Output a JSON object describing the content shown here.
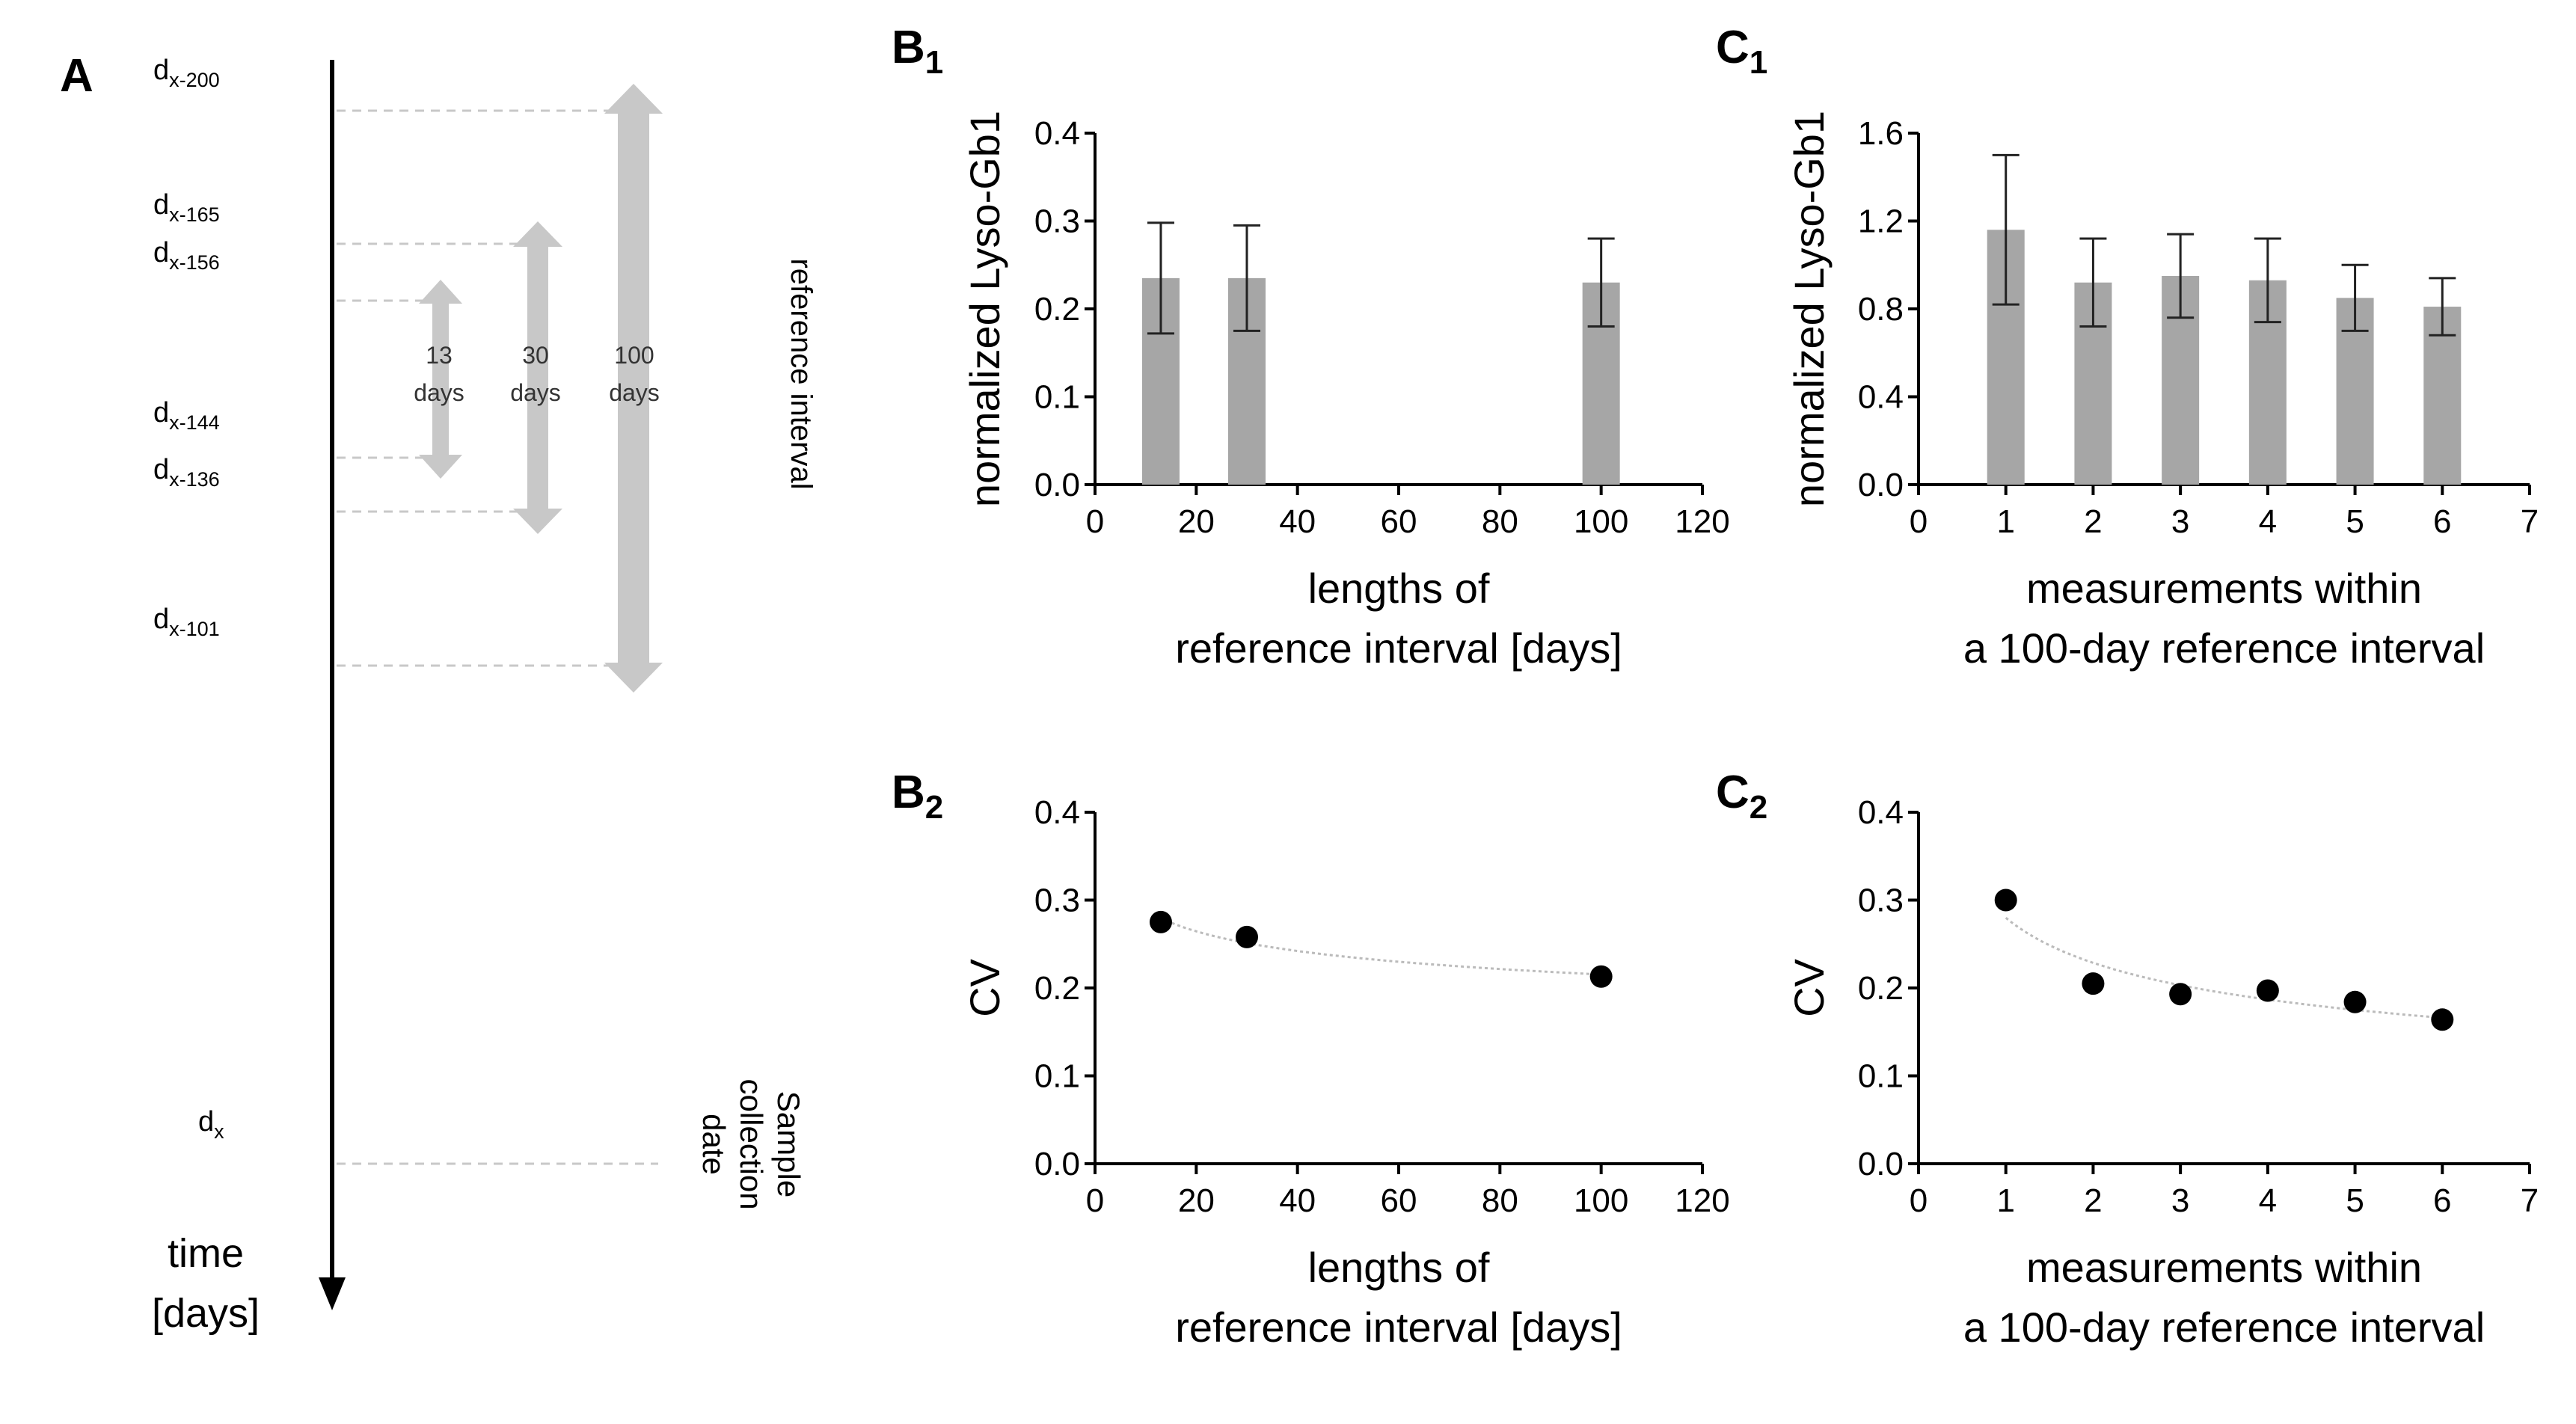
{
  "panels": {
    "A": {
      "label": "A",
      "day_marks": [
        {
          "base": "d",
          "sub": "x-200"
        },
        {
          "base": "d",
          "sub": "x-165"
        },
        {
          "base": "d",
          "sub": "x-156"
        },
        {
          "base": "d",
          "sub": "x-144"
        },
        {
          "base": "d",
          "sub": "x-136"
        },
        {
          "base": "d",
          "sub": "x-101"
        },
        {
          "base": "d",
          "sub": "x"
        }
      ],
      "intervals": [
        {
          "number": "13",
          "unit": "days"
        },
        {
          "number": "30",
          "unit": "days"
        },
        {
          "number": "100",
          "unit": "days"
        }
      ],
      "reference_label": "reference interval",
      "sample_label": [
        "Sample",
        "collection",
        "date"
      ],
      "time_label": [
        "time",
        "[days]"
      ]
    },
    "B1": {
      "label": "B",
      "sub": "1"
    },
    "C1": {
      "label": "C",
      "sub": "1"
    },
    "B2": {
      "label": "B",
      "sub": "2"
    },
    "C2": {
      "label": "C",
      "sub": "2"
    }
  },
  "colors": {
    "bar": "#a6a6a6",
    "interval": "#c8c8c8",
    "axis": "#000000",
    "point": "#000000",
    "trend": "#bbbbbb",
    "guide": "#c8c8c8"
  },
  "chart_data": [
    {
      "id": "B1",
      "type": "bar",
      "xlabel": [
        "lengths of",
        "reference interval [days]"
      ],
      "ylabel": "normalized Lyso-Gb1",
      "xlim": [
        0,
        120
      ],
      "ylim": [
        0,
        0.4
      ],
      "xticks": [
        "0",
        "20",
        "40",
        "60",
        "80",
        "100",
        "120"
      ],
      "yticks": [
        "0.0",
        "0.1",
        "0.2",
        "0.3",
        "0.4"
      ],
      "x": [
        13,
        30,
        100
      ],
      "values": [
        0.235,
        0.235,
        0.23
      ],
      "errors": [
        0.063,
        0.06,
        0.05
      ]
    },
    {
      "id": "C1",
      "type": "bar",
      "xlabel": [
        "measurements within",
        "a 100-day reference interval"
      ],
      "ylabel": "normalized Lyso-Gb1",
      "xlim": [
        0,
        7
      ],
      "ylim": [
        0,
        1.6
      ],
      "xticks": [
        "0",
        "1",
        "2",
        "3",
        "4",
        "5",
        "6",
        "7"
      ],
      "yticks": [
        "0.0",
        "0.4",
        "0.8",
        "1.2",
        "1.6"
      ],
      "x": [
        1,
        2,
        3,
        4,
        5,
        6
      ],
      "values": [
        1.16,
        0.92,
        0.95,
        0.93,
        0.85,
        0.81
      ],
      "errors": [
        0.34,
        0.2,
        0.19,
        0.19,
        0.15,
        0.13
      ]
    },
    {
      "id": "B2",
      "type": "scatter",
      "xlabel": [
        "lengths of",
        "reference interval [days]"
      ],
      "ylabel": "CV",
      "xlim": [
        0,
        120
      ],
      "ylim": [
        0,
        0.4
      ],
      "xticks": [
        "0",
        "20",
        "40",
        "60",
        "80",
        "100",
        "120"
      ],
      "yticks": [
        "0.0",
        "0.1",
        "0.2",
        "0.3",
        "0.4"
      ],
      "x": [
        13,
        30,
        100
      ],
      "values": [
        0.275,
        0.258,
        0.213
      ],
      "trend": "power-law fit"
    },
    {
      "id": "C2",
      "type": "scatter",
      "xlabel": [
        "measurements within",
        "a 100-day reference interval"
      ],
      "ylabel": "CV",
      "xlim": [
        0,
        7
      ],
      "ylim": [
        0,
        0.4
      ],
      "xticks": [
        "0",
        "1",
        "2",
        "3",
        "4",
        "5",
        "6",
        "7"
      ],
      "yticks": [
        "0.0",
        "0.1",
        "0.2",
        "0.3",
        "0.4"
      ],
      "x": [
        1,
        2,
        3,
        4,
        5,
        6
      ],
      "values": [
        0.3,
        0.205,
        0.193,
        0.197,
        0.184,
        0.164
      ],
      "trend": "power-law fit"
    }
  ]
}
